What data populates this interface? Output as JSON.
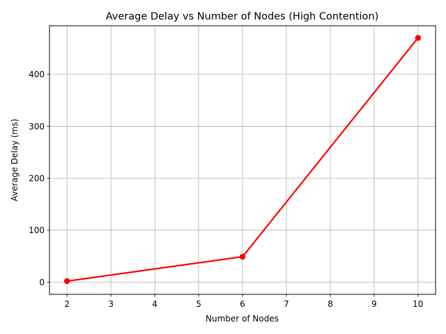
{
  "chart_data": {
    "type": "line",
    "title": "Average Delay vs Number of Nodes (High Contention)",
    "xlabel": "Number of Nodes",
    "ylabel": "Average Delay (ms)",
    "x": [
      2,
      6,
      10
    ],
    "series": [
      {
        "values": [
          2,
          49,
          470
        ],
        "color": "#ff0000"
      }
    ],
    "xlim": [
      1.6,
      10.4
    ],
    "ylim": [
      -23.4,
      493.4
    ],
    "xticks": [
      2,
      3,
      4,
      5,
      6,
      7,
      8,
      9,
      10
    ],
    "yticks": [
      0,
      100,
      200,
      300,
      400
    ],
    "grid": true,
    "legend": "none",
    "colors": {
      "grid": "#b0b0b0",
      "axis": "#000000"
    }
  }
}
